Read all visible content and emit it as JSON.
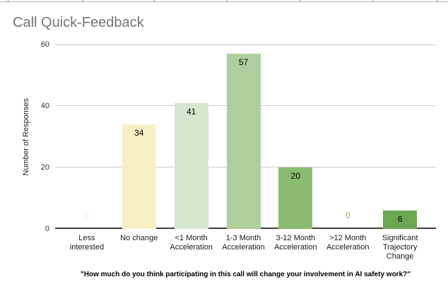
{
  "chart_data": {
    "type": "bar",
    "title": "Call Quick-Feedback",
    "categories": [
      "Less interested",
      "No change",
      "<1 Month Acceleration",
      "1-3 Month Acceleration",
      "3-12 Month Acceleration",
      ">12 Month Acceleration",
      "Significant Trajectory Change"
    ],
    "values": [
      0,
      34,
      41,
      57,
      20,
      0,
      6
    ],
    "bar_colors": [
      "#f8efc6",
      "#f8efc6",
      "#d6e7cf",
      "#aecf9d",
      "#8bbb71",
      "#7cb45e",
      "#6aa84f"
    ],
    "xlabel": "",
    "ylabel": "Number of Responses",
    "ylim": [
      0,
      60
    ],
    "yticks": [
      0,
      20,
      40,
      60
    ],
    "grid": true,
    "legend": "none",
    "value_label_color": "#000000",
    "title_color": "#747474",
    "gridline_color": "#cccccc",
    "axis_line_color": "#3d3d3d",
    "footnote": "\"How much do you think participating in this call will change your involvement in AI safety work?\""
  }
}
